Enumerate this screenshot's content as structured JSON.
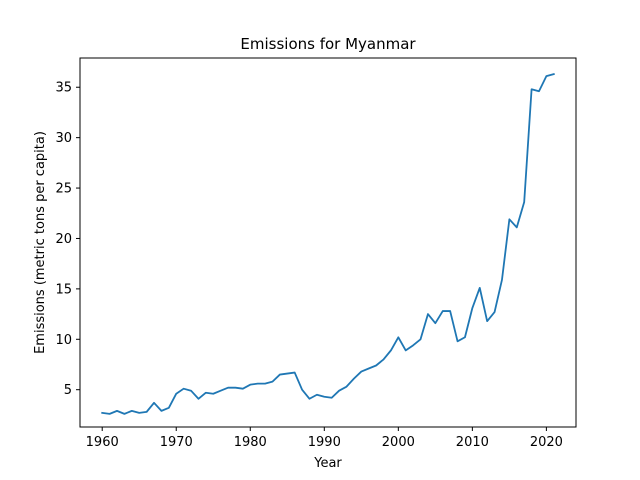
{
  "chart_data": {
    "type": "line",
    "title": "Emissions for Myanmar",
    "xlabel": "Year",
    "ylabel": "Emissions (metric tons per capita)",
    "xlim": [
      1957,
      2024
    ],
    "ylim": [
      1.3,
      37.9
    ],
    "x_ticks": [
      1960,
      1970,
      1980,
      1990,
      2000,
      2010,
      2020
    ],
    "y_ticks": [
      5,
      10,
      15,
      20,
      25,
      30,
      35
    ],
    "grid": false,
    "line_color": "#1f77b4",
    "series": [
      {
        "x": [
          1960,
          1961,
          1962,
          1963,
          1964,
          1965,
          1966,
          1967,
          1968,
          1969,
          1970,
          1971,
          1972,
          1973,
          1974,
          1975,
          1976,
          1977,
          1978,
          1979,
          1980,
          1981,
          1982,
          1983,
          1984,
          1985,
          1986,
          1987,
          1988,
          1989,
          1990,
          1991,
          1992,
          1993,
          1994,
          1995,
          1996,
          1997,
          1998,
          1999,
          2000,
          2001,
          2002,
          2003,
          2004,
          2005,
          2006,
          2007,
          2008,
          2009,
          2010,
          2011,
          2012,
          2013,
          2014,
          2015,
          2016,
          2017,
          2018,
          2019,
          2020,
          2021
        ],
        "values": [
          2.7,
          2.6,
          2.9,
          2.6,
          2.9,
          2.7,
          2.8,
          3.7,
          2.9,
          3.2,
          4.6,
          5.1,
          4.9,
          4.1,
          4.7,
          4.6,
          4.9,
          5.2,
          5.2,
          5.1,
          5.5,
          5.6,
          5.6,
          5.8,
          6.5,
          6.6,
          6.7,
          5.0,
          4.1,
          4.5,
          4.3,
          4.2,
          4.9,
          5.3,
          6.1,
          6.8,
          7.1,
          7.4,
          8.0,
          8.9,
          10.2,
          8.9,
          9.4,
          10.0,
          12.5,
          11.6,
          12.8,
          12.8,
          9.8,
          10.2,
          13.1,
          15.1,
          11.8,
          12.7,
          15.9,
          21.9,
          21.1,
          23.6,
          34.8,
          34.6,
          36.1,
          36.3
        ]
      }
    ]
  }
}
